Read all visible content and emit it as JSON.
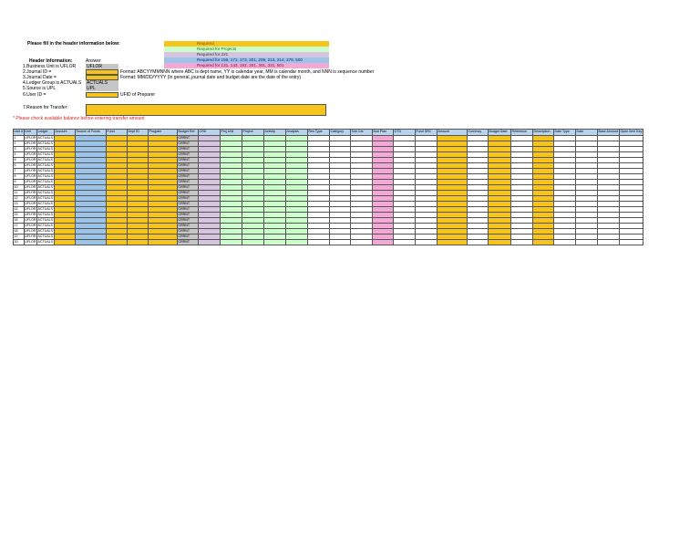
{
  "title": "Please fill in the header information below:",
  "legend": [
    {
      "label": "Required",
      "color": "#f7c41c",
      "text_color": "#8a4b00"
    },
    {
      "label": "Required for Projects",
      "color": "#ccffcc",
      "text_color": "#0a7a0a"
    },
    {
      "label": "Required for 221",
      "color": "#d6c4e0",
      "text_color": "#333333"
    },
    {
      "label": "Required for 156, 171, 173, 201, 209, 213, 214, 279, 500",
      "color": "#9cc3e8",
      "text_color": "#0b2a7a"
    },
    {
      "label": "Required for 131, 143, 192, 201, 301, 331, 501",
      "color": "#f4a8d6",
      "text_color": "#7a0a3a"
    }
  ],
  "header": {
    "label": "Header Information:",
    "answer_label": "Answer",
    "rows": [
      {
        "label": "1.Business Unit is UFLOR",
        "answer": "UFLOR",
        "note": ""
      },
      {
        "label": "2.Journal ID =",
        "answer": "",
        "note": "Format: ABCYYMMNNN where ABC is dept name, YY is calendar year, MM is calendar month, and NNN is sequence number"
      },
      {
        "label": "3.Journal Date =",
        "answer": "",
        "note": "Format: MM/DD/YYYY (In general, journal date and budget date are the date of the entry)"
      },
      {
        "label": "4.Ledger Group is ACTUALS",
        "answer": "ACTUALS",
        "note": ""
      },
      {
        "label": "5.Source is UPL",
        "answer": "UPL",
        "note": ""
      },
      {
        "label": "6.User ID =",
        "answer": "",
        "note": "UFID of Preparer"
      }
    ],
    "reason_label": "7.Reason for Transfer:",
    "warning": "* Please check available balance before entering transfer amount"
  },
  "table": {
    "columns": [
      "Line #",
      "Unit",
      "Ledger",
      "Account",
      "Source of Funds",
      "Fund",
      "Dept ID",
      "Program",
      "Budget Ref",
      "CRD",
      "Proj Unit",
      "Project",
      "Activity",
      "Analysis",
      "Res Type",
      "Category",
      "Sub Cat",
      "Bud Plan",
      "OTD",
      "Fund SRC",
      "Amount",
      "Currency",
      "Budget Date",
      "Reference",
      "Description",
      "Date Type",
      "Date",
      "Base Amount",
      "Open Item Key"
    ],
    "column_colors": [
      "c-wh",
      "c-wh",
      "c-wh",
      "c-or",
      "c-bl",
      "c-or",
      "c-or",
      "c-or",
      "c-gy",
      "c-lv",
      "c-gr",
      "c-gr",
      "c-gr",
      "c-gr",
      "c-wh",
      "c-wh",
      "c-wh",
      "c-pk",
      "c-wh",
      "c-wh",
      "c-or",
      "c-wh",
      "c-or",
      "c-wh",
      "c-or",
      "c-wh",
      "c-wh",
      "c-wh",
      "c-wh"
    ],
    "column_widths": [
      10,
      12,
      19,
      23,
      34,
      23,
      23,
      32,
      23,
      24,
      24,
      24,
      24,
      24,
      24,
      23,
      24,
      23,
      24,
      24,
      33,
      23,
      25,
      24,
      23,
      24,
      24,
      24,
      24
    ],
    "default_unit": "UFLOR",
    "default_ledger": "ACTUALS",
    "default_budget_ref": "CRRNT",
    "rows": [
      "1",
      "2",
      "3",
      "4",
      "5",
      "6",
      "7",
      "8",
      "9",
      "10",
      "11",
      "12",
      "13",
      "14",
      "15",
      "16",
      "17",
      "18",
      "19",
      "20"
    ]
  }
}
